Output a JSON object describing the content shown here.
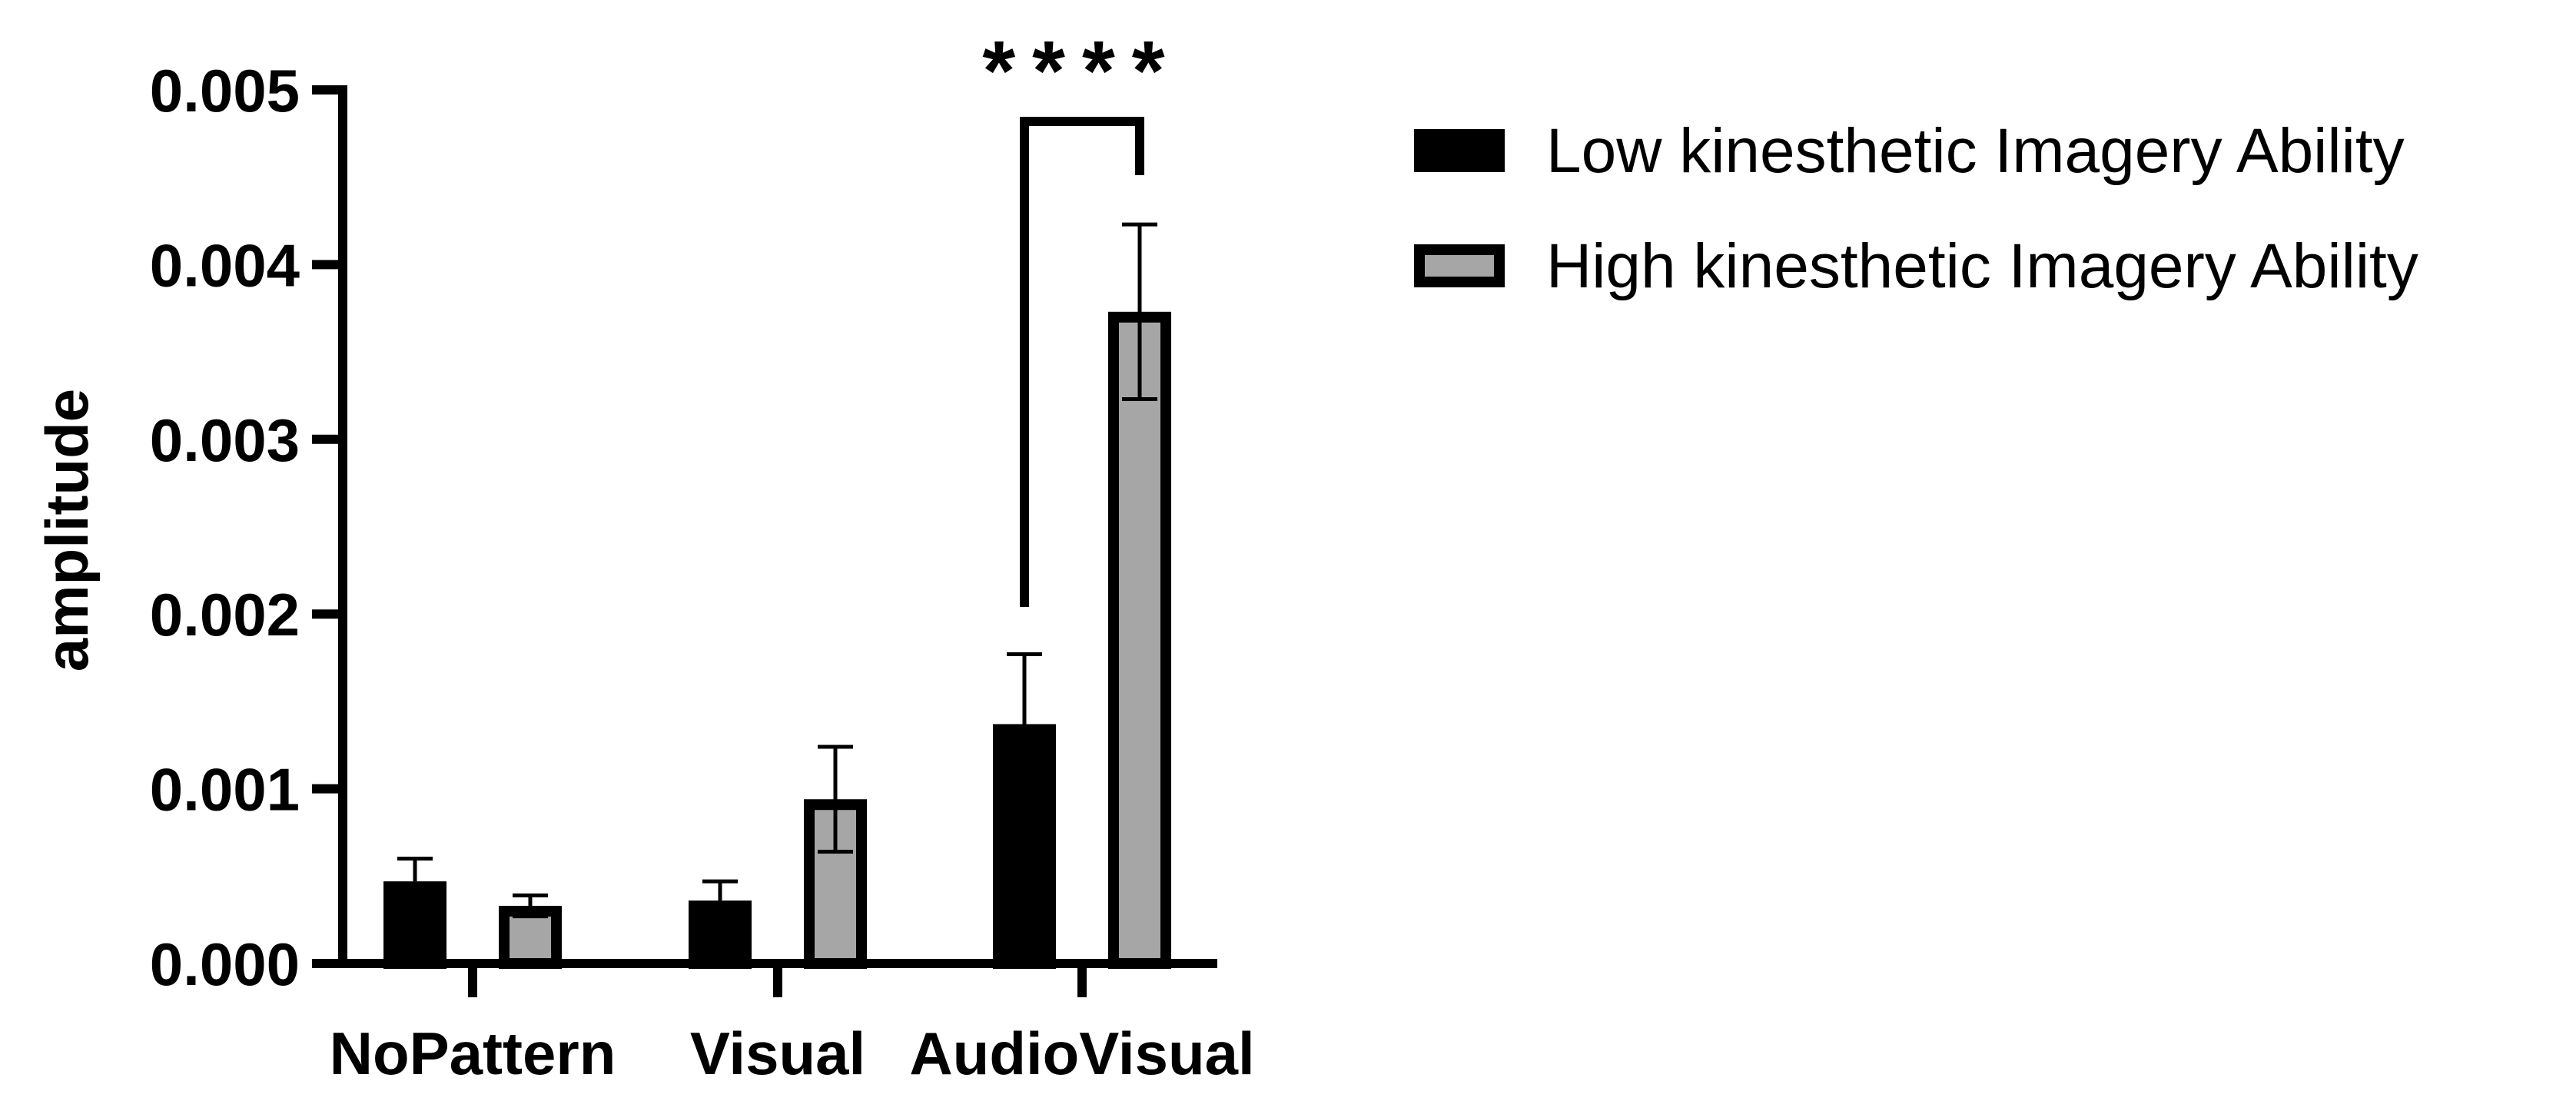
{
  "chart_data": {
    "type": "bar",
    "title": "",
    "xlabel": "",
    "ylabel": "amplitude",
    "ylim": [
      0,
      0.005
    ],
    "yticks": [
      "0.000",
      "0.001",
      "0.002",
      "0.003",
      "0.004",
      "0.005"
    ],
    "categories": [
      "NoPattern",
      "Visual",
      "AudioVisual"
    ],
    "series": [
      {
        "name": "Low kinesthetic Imagery Ability",
        "color": "#000000",
        "values": [
          0.00047,
          0.00036,
          0.00137
        ],
        "errors": [
          0.00013,
          0.00011,
          0.0004
        ]
      },
      {
        "name": "High kinesthetic Imagery Ability",
        "color": "#a6a6a6",
        "values": [
          0.00033,
          0.00094,
          0.00373
        ],
        "errors": [
          6e-05,
          0.0003,
          0.0005
        ]
      }
    ],
    "significance": [
      {
        "category": "AudioVisual",
        "label": "****"
      }
    ],
    "legend_position": "top-right",
    "grid": false
  }
}
